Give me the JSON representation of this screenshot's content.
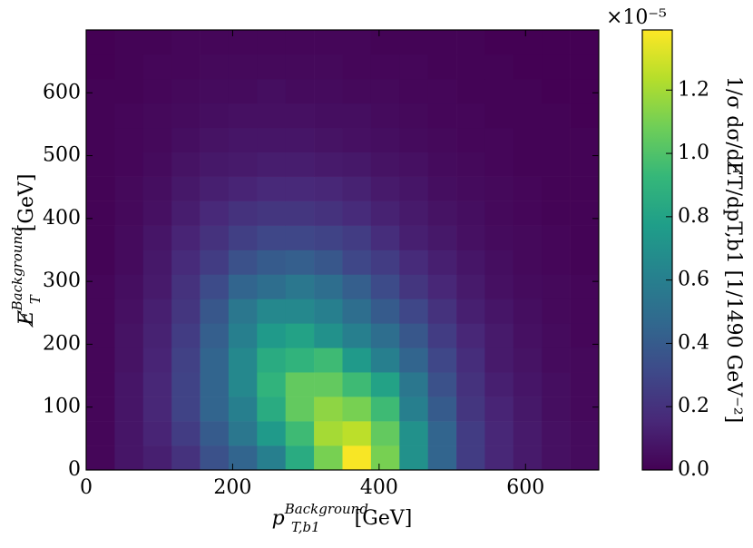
{
  "chart_data": {
    "type": "heatmap",
    "x_label": {
      "base": "p",
      "sup": "Background",
      "sub": "T,b1",
      "unit": "[GeV]"
    },
    "y_label": {
      "base": "E̸",
      "sup": "Background",
      "sub": "T",
      "unit": "[GeV]"
    },
    "colorbar_label": "1/σ dσ/dE̸T/dpT,b1 [1/1490 GeV⁻²]",
    "colorbar_multiplier": "×10⁻⁵",
    "colormap": "viridis",
    "xbins": [
      0,
      38.9,
      77.8,
      116.7,
      155.6,
      194.4,
      233.3,
      272.2,
      311.1,
      350,
      388.9,
      427.8,
      466.7,
      505.6,
      544.4,
      583.3,
      622.2,
      661.1,
      700
    ],
    "ybins": [
      0,
      38.9,
      77.8,
      116.7,
      155.6,
      194.4,
      233.3,
      272.2,
      311.1,
      350,
      388.9,
      427.8,
      466.7,
      505.6,
      544.4,
      583.3,
      622.2,
      661.1,
      700
    ],
    "z": [
      [
        0.02,
        0.08,
        0.12,
        0.2,
        0.35,
        0.45,
        0.6,
        0.85,
        1.1,
        1.38,
        1.1,
        0.7,
        0.45,
        0.25,
        0.15,
        0.1,
        0.06,
        0.04
      ],
      [
        0.02,
        0.08,
        0.14,
        0.25,
        0.4,
        0.55,
        0.75,
        0.95,
        1.2,
        1.25,
        1.05,
        0.7,
        0.45,
        0.25,
        0.15,
        0.1,
        0.06,
        0.04
      ],
      [
        0.02,
        0.08,
        0.15,
        0.28,
        0.45,
        0.6,
        0.85,
        1.05,
        1.15,
        1.1,
        0.95,
        0.6,
        0.4,
        0.22,
        0.14,
        0.09,
        0.05,
        0.03
      ],
      [
        0.02,
        0.08,
        0.15,
        0.28,
        0.45,
        0.65,
        0.9,
        1.05,
        1.05,
        0.95,
        0.8,
        0.55,
        0.35,
        0.2,
        0.12,
        0.08,
        0.05,
        0.03
      ],
      [
        0.02,
        0.07,
        0.14,
        0.27,
        0.45,
        0.65,
        0.85,
        0.9,
        0.95,
        0.75,
        0.6,
        0.45,
        0.3,
        0.18,
        0.1,
        0.07,
        0.04,
        0.03
      ],
      [
        0.02,
        0.07,
        0.13,
        0.25,
        0.42,
        0.6,
        0.75,
        0.8,
        0.7,
        0.6,
        0.5,
        0.38,
        0.25,
        0.15,
        0.1,
        0.06,
        0.04,
        0.02
      ],
      [
        0.02,
        0.06,
        0.12,
        0.22,
        0.38,
        0.55,
        0.65,
        0.65,
        0.6,
        0.5,
        0.4,
        0.3,
        0.2,
        0.12,
        0.08,
        0.05,
        0.03,
        0.02
      ],
      [
        0.02,
        0.05,
        0.1,
        0.2,
        0.32,
        0.45,
        0.5,
        0.55,
        0.5,
        0.42,
        0.32,
        0.22,
        0.15,
        0.1,
        0.06,
        0.04,
        0.03,
        0.02
      ],
      [
        0.01,
        0.04,
        0.09,
        0.17,
        0.25,
        0.35,
        0.4,
        0.42,
        0.38,
        0.3,
        0.25,
        0.17,
        0.12,
        0.08,
        0.05,
        0.03,
        0.02,
        0.01
      ],
      [
        0.01,
        0.04,
        0.08,
        0.14,
        0.2,
        0.26,
        0.3,
        0.3,
        0.28,
        0.25,
        0.18,
        0.12,
        0.09,
        0.06,
        0.04,
        0.03,
        0.02,
        0.01
      ],
      [
        0.01,
        0.03,
        0.06,
        0.11,
        0.16,
        0.2,
        0.22,
        0.22,
        0.2,
        0.17,
        0.13,
        0.1,
        0.07,
        0.05,
        0.03,
        0.02,
        0.01,
        0.01
      ],
      [
        0.01,
        0.03,
        0.05,
        0.09,
        0.12,
        0.14,
        0.16,
        0.16,
        0.15,
        0.13,
        0.1,
        0.08,
        0.05,
        0.04,
        0.03,
        0.02,
        0.01,
        0.01
      ],
      [
        0.01,
        0.02,
        0.04,
        0.07,
        0.09,
        0.1,
        0.11,
        0.11,
        0.1,
        0.09,
        0.07,
        0.06,
        0.04,
        0.03,
        0.02,
        0.01,
        0.01,
        0.01
      ],
      [
        0.01,
        0.02,
        0.03,
        0.05,
        0.07,
        0.08,
        0.08,
        0.08,
        0.07,
        0.06,
        0.05,
        0.04,
        0.03,
        0.02,
        0.02,
        0.01,
        0.01,
        0.01
      ],
      [
        0.01,
        0.02,
        0.03,
        0.04,
        0.05,
        0.06,
        0.06,
        0.06,
        0.05,
        0.05,
        0.04,
        0.03,
        0.02,
        0.02,
        0.01,
        0.01,
        0.01,
        0
      ],
      [
        0.01,
        0.01,
        0.02,
        0.03,
        0.04,
        0.04,
        0.05,
        0.04,
        0.04,
        0.03,
        0.03,
        0.02,
        0.02,
        0.01,
        0.01,
        0.01,
        0,
        0
      ],
      [
        0,
        0.01,
        0.02,
        0.02,
        0.03,
        0.03,
        0.03,
        0.03,
        0.03,
        0.02,
        0.02,
        0.02,
        0.01,
        0.01,
        0.01,
        0,
        0,
        0
      ],
      [
        0,
        0.01,
        0.01,
        0.02,
        0.02,
        0.02,
        0.02,
        0.02,
        0.02,
        0.02,
        0.01,
        0.01,
        0.01,
        0.01,
        0,
        0,
        0,
        0
      ]
    ],
    "xlim": [
      0,
      700
    ],
    "ylim": [
      0,
      700
    ],
    "xticks": [
      0,
      200,
      400,
      600
    ],
    "yticks": [
      0,
      100,
      200,
      300,
      400,
      500,
      600
    ],
    "clim": [
      0,
      1.39
    ],
    "cticks": [
      {
        "value": 0,
        "label": "0.0"
      },
      0.2,
      0.4,
      0.6,
      0.8,
      {
        "value": 1,
        "label": "1.0"
      },
      1.2
    ]
  }
}
